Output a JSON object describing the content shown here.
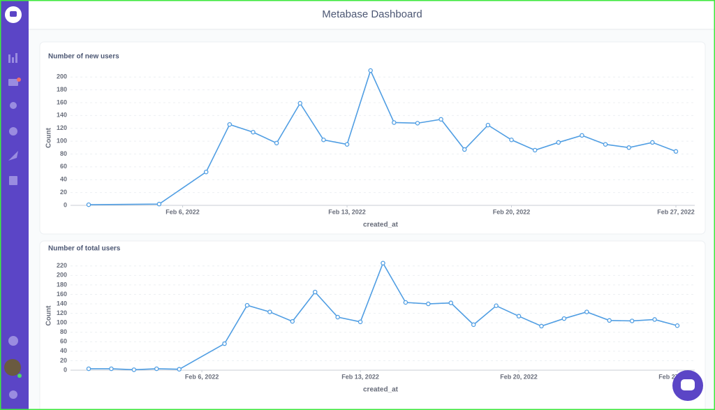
{
  "header": {
    "title": "Metabase Dashboard"
  },
  "chart_data": [
    {
      "type": "line",
      "title": "Number of new users",
      "x_label": "created_at",
      "y_label": "Count",
      "x": [
        "2022-02-02",
        "2022-02-05",
        "2022-02-07",
        "2022-02-08",
        "2022-02-09",
        "2022-02-10",
        "2022-02-11",
        "2022-02-12",
        "2022-02-13",
        "2022-02-14",
        "2022-02-15",
        "2022-02-16",
        "2022-02-17",
        "2022-02-18",
        "2022-02-19",
        "2022-02-20",
        "2022-02-21",
        "2022-02-22",
        "2022-02-23",
        "2022-02-24",
        "2022-02-25",
        "2022-02-26",
        "2022-02-27"
      ],
      "values": [
        1,
        2,
        52,
        126,
        114,
        97,
        159,
        102,
        95,
        210,
        129,
        128,
        134,
        87,
        125,
        102,
        86,
        98,
        109,
        95,
        90,
        98,
        84
      ],
      "color": "#509ee3",
      "xlim": [
        "2022-02-02",
        "2022-02-27"
      ],
      "xticks": [
        {
          "value": "2022-02-06",
          "label": "Feb 6, 2022"
        },
        {
          "value": "2022-02-13",
          "label": "Feb 13, 2022"
        },
        {
          "value": "2022-02-20",
          "label": "Feb 20, 2022"
        },
        {
          "value": "2022-02-27",
          "label": "Feb 27, 2022"
        }
      ],
      "ylim": [
        0,
        210
      ],
      "yticks": [
        0,
        20,
        40,
        60,
        80,
        100,
        120,
        140,
        160,
        180,
        200
      ],
      "grid": true
    },
    {
      "type": "line",
      "title": "Number of total users",
      "x_label": "created_at",
      "y_label": "Count",
      "x": [
        "2022-02-01",
        "2022-02-02",
        "2022-02-03",
        "2022-02-04",
        "2022-02-05",
        "2022-02-07",
        "2022-02-08",
        "2022-02-09",
        "2022-02-10",
        "2022-02-11",
        "2022-02-12",
        "2022-02-13",
        "2022-02-14",
        "2022-02-15",
        "2022-02-16",
        "2022-02-17",
        "2022-02-18",
        "2022-02-19",
        "2022-02-20",
        "2022-02-21",
        "2022-02-22",
        "2022-02-23",
        "2022-02-24",
        "2022-02-25",
        "2022-02-26",
        "2022-02-27"
      ],
      "values": [
        3,
        3,
        1,
        3,
        2,
        56,
        137,
        123,
        103,
        165,
        112,
        102,
        226,
        143,
        140,
        142,
        96,
        136,
        114,
        93,
        109,
        123,
        105,
        104,
        107,
        94
      ],
      "color": "#509ee3",
      "xlim": [
        "2022-02-01",
        "2022-02-27"
      ],
      "xticks": [
        {
          "value": "2022-02-06",
          "label": "Feb 6, 2022"
        },
        {
          "value": "2022-02-13",
          "label": "Feb 13, 2022"
        },
        {
          "value": "2022-02-20",
          "label": "Feb 20, 2022"
        },
        {
          "value": "2022-02-27",
          "label": "Feb 27, 2022"
        }
      ],
      "ylim": [
        0,
        230
      ],
      "yticks": [
        0,
        20,
        40,
        60,
        80,
        100,
        120,
        140,
        160,
        180,
        200,
        220
      ],
      "grid": true
    }
  ]
}
